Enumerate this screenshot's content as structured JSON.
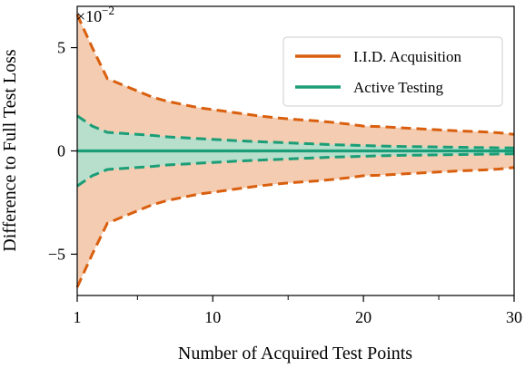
{
  "chart_data": {
    "type": "area",
    "title": "",
    "xlabel": "Number of Acquired Test Points",
    "ylabel": "Difference to Full Test Loss",
    "y_multiplier_label": "×10",
    "y_multiplier_exponent": "−2",
    "xlim": [
      1,
      30
    ],
    "ylim": [
      -7,
      7
    ],
    "x_ticks": [
      {
        "value": 1,
        "label": "1"
      },
      {
        "value": 10,
        "label": "10"
      },
      {
        "value": 20,
        "label": "20"
      },
      {
        "value": 30,
        "label": "30"
      }
    ],
    "x_minor_ticks": [
      5,
      15,
      25
    ],
    "y_ticks": [
      {
        "value": -5,
        "label": "−5"
      },
      {
        "value": 0,
        "label": "0"
      },
      {
        "value": 5,
        "label": "5"
      }
    ],
    "grid": false,
    "legend_position": "top-right",
    "series": [
      {
        "name": "I.I.D. Acquisition",
        "color": "#d95f0e",
        "fill_color": "#f3c7a8",
        "x": [
          1,
          2,
          3,
          4,
          5,
          6,
          7,
          8,
          9,
          10,
          11,
          12,
          13,
          14,
          15,
          16,
          17,
          18,
          19,
          20,
          21,
          22,
          23,
          24,
          25,
          26,
          27,
          28,
          29,
          30
        ],
        "mean": [
          0,
          0,
          0,
          0,
          0,
          0,
          0,
          0,
          0,
          0,
          0,
          0,
          0,
          0,
          0,
          0,
          0,
          0,
          0,
          0,
          0,
          0,
          0,
          0,
          0,
          0,
          0,
          0,
          0,
          0
        ],
        "upper": [
          6.6,
          5.0,
          3.5,
          3.2,
          2.9,
          2.6,
          2.4,
          2.25,
          2.1,
          2.0,
          1.9,
          1.8,
          1.7,
          1.62,
          1.55,
          1.5,
          1.45,
          1.38,
          1.3,
          1.2,
          1.18,
          1.14,
          1.1,
          1.06,
          1.02,
          0.98,
          0.95,
          0.92,
          0.88,
          0.8
        ],
        "lower": [
          -6.6,
          -5.0,
          -3.5,
          -3.2,
          -2.9,
          -2.6,
          -2.4,
          -2.25,
          -2.1,
          -2.0,
          -1.9,
          -1.8,
          -1.7,
          -1.62,
          -1.55,
          -1.5,
          -1.45,
          -1.38,
          -1.3,
          -1.2,
          -1.18,
          -1.14,
          -1.1,
          -1.06,
          -1.02,
          -0.98,
          -0.95,
          -0.92,
          -0.88,
          -0.8
        ]
      },
      {
        "name": "Active Testing",
        "color": "#1b9e77",
        "fill_color": "#b3dfcc",
        "x": [
          1,
          2,
          3,
          4,
          5,
          6,
          7,
          8,
          9,
          10,
          11,
          12,
          13,
          14,
          15,
          16,
          17,
          18,
          19,
          20,
          21,
          22,
          23,
          24,
          25,
          26,
          27,
          28,
          29,
          30
        ],
        "mean": [
          0,
          0,
          0,
          0,
          0,
          0,
          0,
          0,
          0,
          0,
          0,
          0,
          0,
          0,
          0,
          0,
          0,
          0,
          0,
          0,
          0,
          0,
          0,
          0,
          0,
          0,
          0,
          0,
          0,
          0
        ],
        "upper": [
          1.7,
          1.2,
          0.9,
          0.85,
          0.8,
          0.75,
          0.68,
          0.64,
          0.6,
          0.56,
          0.52,
          0.48,
          0.45,
          0.42,
          0.39,
          0.36,
          0.33,
          0.3,
          0.28,
          0.26,
          0.24,
          0.22,
          0.21,
          0.2,
          0.19,
          0.18,
          0.17,
          0.16,
          0.15,
          0.14
        ],
        "lower": [
          -1.7,
          -1.2,
          -0.9,
          -0.85,
          -0.8,
          -0.75,
          -0.68,
          -0.64,
          -0.6,
          -0.56,
          -0.52,
          -0.48,
          -0.45,
          -0.42,
          -0.39,
          -0.36,
          -0.33,
          -0.3,
          -0.28,
          -0.26,
          -0.24,
          -0.22,
          -0.21,
          -0.2,
          -0.19,
          -0.18,
          -0.17,
          -0.16,
          -0.15,
          -0.14
        ]
      }
    ]
  }
}
